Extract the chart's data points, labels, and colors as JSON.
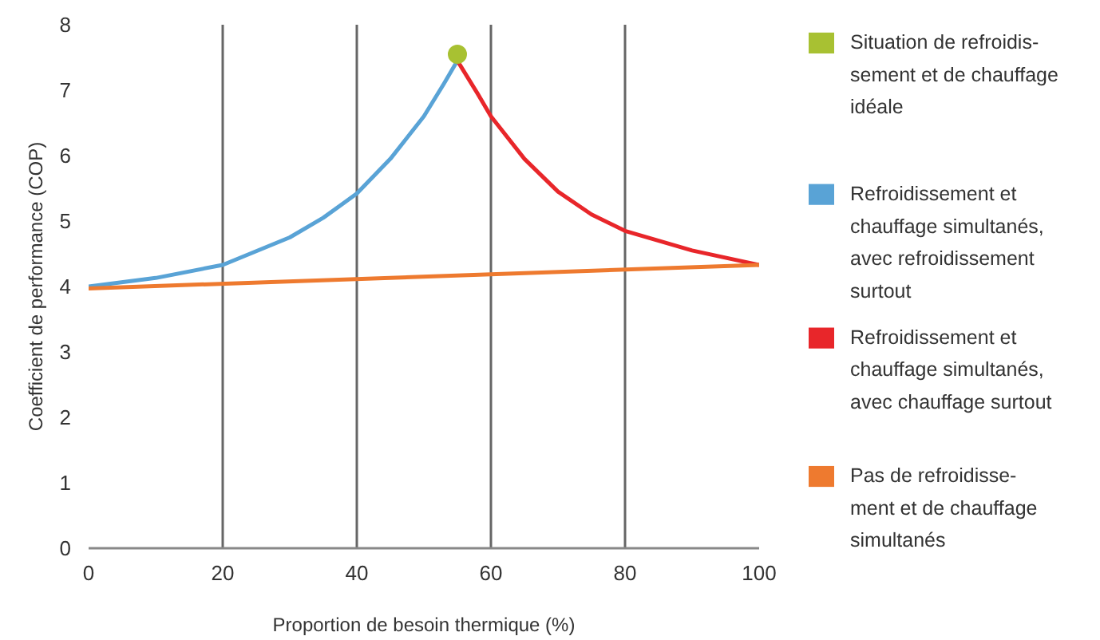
{
  "chart_data": {
    "type": "line",
    "xlabel": "Proportion de besoin thermique (%)",
    "ylabel": "Coefficient de performance (COP)",
    "xlim": [
      0,
      100
    ],
    "xticks": [
      0,
      20,
      40,
      60,
      80,
      100
    ],
    "ylim": [
      0,
      8
    ],
    "yticks": [
      0,
      1,
      2,
      3,
      4,
      5,
      6,
      7,
      8
    ],
    "grid": "x",
    "legend": "right",
    "series": [
      {
        "name": "Situation de refroidis-\nsement et de chauffage\nidéale",
        "type": "scatter",
        "marker": "circle",
        "color": "#a8c132",
        "x": [
          55
        ],
        "values": [
          7.55
        ]
      },
      {
        "name": "Refroidissement et\nchauffage simultanés,\navec refroidissement\nsurtout",
        "color": "#59a3d6",
        "x": [
          0,
          10,
          20,
          30,
          35,
          40,
          45,
          50,
          53,
          55
        ],
        "values": [
          4.0,
          4.13,
          4.33,
          4.75,
          5.05,
          5.42,
          5.95,
          6.6,
          7.1,
          7.45
        ]
      },
      {
        "name": "Refroidissement et\nchauffage simultanés,\navec chauffage surtout",
        "color": "#e8262a",
        "x": [
          55,
          58,
          60,
          65,
          70,
          75,
          80,
          90,
          100
        ],
        "values": [
          7.45,
          6.95,
          6.6,
          5.95,
          5.45,
          5.1,
          4.85,
          4.55,
          4.33
        ]
      },
      {
        "name": "Pas de refroidisse-\nment et de chauffage\nsimultanés",
        "color": "#ee7a2f",
        "x": [
          0,
          100
        ],
        "values": [
          3.97,
          4.33
        ]
      }
    ]
  }
}
